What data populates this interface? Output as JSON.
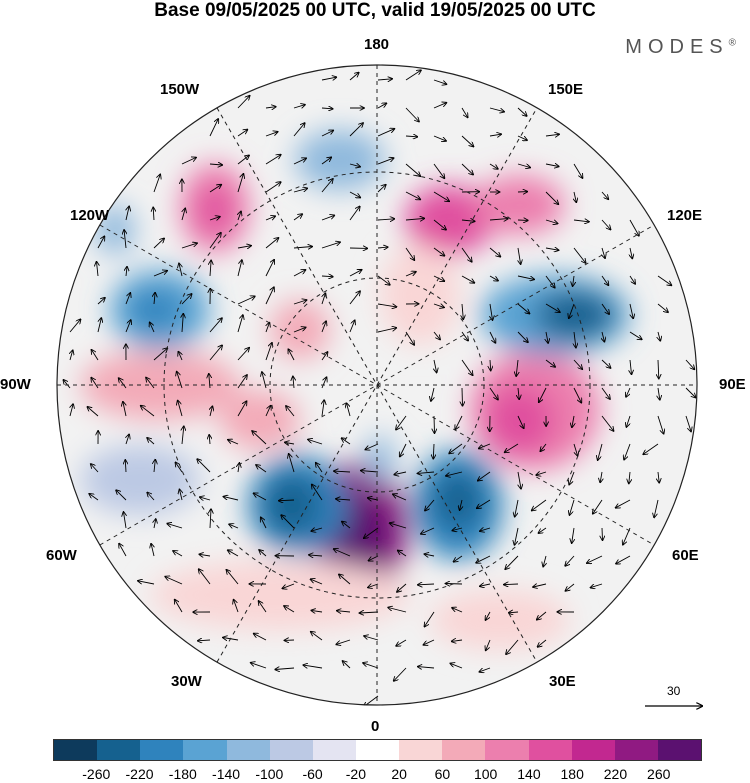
{
  "title": "Base 09/05/2025 00 UTC, valid 19/05/2025 00 UTC",
  "brand": "MODES",
  "brand_mark": "®",
  "map": {
    "projection": "polar-stereographic-north",
    "lon_labels": {
      "top": "180",
      "bottom": "0",
      "left": "90W",
      "right": "90E",
      "upper_left_1": "150W",
      "upper_left_2": "120W",
      "lower_left_1": "60W",
      "lower_left_2": "30W",
      "upper_right_1": "150E",
      "upper_right_2": "120E",
      "lower_right_1": "60E",
      "lower_right_2": "30E"
    },
    "reference_vector": "30"
  },
  "colorbar": {
    "colors": [
      "#0d3a5c",
      "#15618f",
      "#2f83bd",
      "#5aa3d3",
      "#8fb9dd",
      "#bcc9e4",
      "#e4e4f2",
      "#ffffff",
      "#f9d6d6",
      "#f3aab8",
      "#ec7fae",
      "#e0509f",
      "#c22890",
      "#901a82",
      "#5b1170"
    ],
    "tick_labels": [
      "-260",
      "-220",
      "-180",
      "-140",
      "-100",
      "-60",
      "-20",
      "20",
      "60",
      "100",
      "140",
      "180",
      "220",
      "260"
    ]
  }
}
